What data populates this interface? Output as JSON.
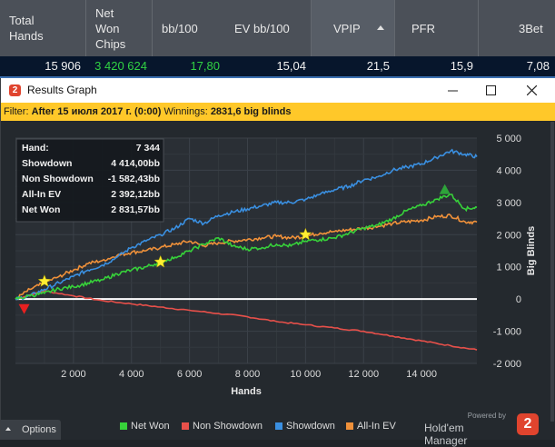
{
  "stats": {
    "headers": [
      "Total Hands",
      "Net Won Chips",
      "bb/100",
      "EV bb/100",
      "VPIP",
      "PFR",
      "3Bet"
    ],
    "values": [
      "15 906",
      "3 420 624",
      "17,80",
      "15,04",
      "21,5",
      "15,9",
      "7,08"
    ]
  },
  "window": {
    "title": "Results Graph",
    "minimize": "—",
    "maximize": "☐",
    "close": "✕"
  },
  "filter": {
    "prefix": "Filter:",
    "value": "After 15 июля 2017 г. (0:00)",
    "winnings_label": "Winnings:",
    "winnings_value": "2831,6 big blinds"
  },
  "summary": [
    {
      "label": "Hand:",
      "value": "7 344"
    },
    {
      "label": "Showdown",
      "value": "4 414,00bb"
    },
    {
      "label": "Non Showdown",
      "value": "-1 582,43bb"
    },
    {
      "label": "All-In EV",
      "value": "2 392,12bb"
    },
    {
      "label": "Net Won",
      "value": "2 831,57bb"
    }
  ],
  "options_label": "Options",
  "brand": {
    "powered_by": "Powered by",
    "name": "Hold'em Manager",
    "logo": "2"
  },
  "colors": {
    "net_won": "#37d23a",
    "non_showdown": "#e8504a",
    "showdown": "#3a8fe0",
    "all_in_ev": "#f0913a",
    "zero_line": "#ffffff",
    "filter_bg": "#ffc829"
  },
  "chart_data": {
    "type": "line",
    "xlabel": "Hands",
    "ylabel": "Big Blinds",
    "xlim": [
      0,
      15906
    ],
    "ylim": [
      -2000,
      5000
    ],
    "xticks": [
      2000,
      4000,
      6000,
      8000,
      10000,
      12000,
      14000
    ],
    "xtick_labels": [
      "2 000",
      "4 000",
      "6 000",
      "8 000",
      "10 000",
      "12 000",
      "14 000"
    ],
    "yticks": [
      5000,
      4000,
      3000,
      2000,
      1000,
      0,
      -1000,
      -2000
    ],
    "ytick_labels": [
      "5 000",
      "4 000",
      "3 000",
      "2 000",
      "1 000",
      "0",
      "-1 000",
      "-2 000"
    ],
    "grid": true,
    "legend_position": "bottom",
    "series": [
      {
        "name": "Net Won",
        "color": "#37d23a",
        "x": [
          0,
          500,
          1000,
          1500,
          2000,
          2500,
          3000,
          3500,
          4000,
          4500,
          5000,
          5500,
          6000,
          6500,
          7000,
          7500,
          8000,
          8500,
          9000,
          9500,
          10000,
          10500,
          11000,
          11500,
          12000,
          12500,
          13000,
          13500,
          14000,
          14500,
          15000,
          15500,
          15906
        ],
        "y": [
          0,
          100,
          180,
          320,
          380,
          500,
          600,
          780,
          900,
          1000,
          1150,
          1300,
          1500,
          1700,
          1900,
          1650,
          1550,
          1600,
          1700,
          1650,
          1800,
          1850,
          1900,
          2050,
          2200,
          2300,
          2500,
          2750,
          2900,
          3100,
          3250,
          2800,
          2850
        ]
      },
      {
        "name": "Non Showdown",
        "color": "#e8504a",
        "x": [
          0,
          1000,
          2000,
          3000,
          4000,
          5000,
          6000,
          7000,
          8000,
          9000,
          10000,
          11000,
          12000,
          13000,
          14000,
          15000,
          15906
        ],
        "y": [
          0,
          250,
          100,
          -50,
          -150,
          -250,
          -350,
          -450,
          -550,
          -700,
          -800,
          -900,
          -1000,
          -1150,
          -1300,
          -1450,
          -1580
        ]
      },
      {
        "name": "Showdown",
        "color": "#3a8fe0",
        "x": [
          0,
          500,
          1000,
          1500,
          2000,
          2500,
          3000,
          3500,
          4000,
          4500,
          5000,
          5500,
          6000,
          6500,
          7000,
          7500,
          8000,
          8500,
          9000,
          9500,
          10000,
          10500,
          11000,
          11500,
          12000,
          12500,
          13000,
          13500,
          14000,
          14500,
          15000,
          15500,
          15906
        ],
        "y": [
          0,
          100,
          300,
          500,
          700,
          900,
          1050,
          1300,
          1600,
          1800,
          2000,
          2200,
          2500,
          2350,
          2600,
          2700,
          2800,
          2900,
          3000,
          3000,
          3100,
          3250,
          3400,
          3500,
          3700,
          3800,
          4000,
          4100,
          4200,
          4400,
          4600,
          4500,
          4420
        ]
      },
      {
        "name": "All-In EV",
        "color": "#f0913a",
        "x": [
          0,
          500,
          1000,
          1500,
          2000,
          2500,
          3000,
          3500,
          4000,
          4500,
          5000,
          5500,
          6000,
          6500,
          7000,
          7500,
          8000,
          8500,
          9000,
          9500,
          10000,
          10500,
          11000,
          11500,
          12000,
          12500,
          13000,
          13500,
          14000,
          14500,
          15000,
          15500,
          15906
        ],
        "y": [
          0,
          300,
          500,
          700,
          900,
          1100,
          1200,
          1350,
          1450,
          1500,
          1600,
          1700,
          1800,
          1650,
          1750,
          1800,
          1850,
          1900,
          1950,
          1900,
          1950,
          2050,
          2100,
          2150,
          2200,
          2250,
          2350,
          2400,
          2450,
          2550,
          2600,
          2400,
          2390
        ]
      }
    ],
    "markers": [
      {
        "shape": "star",
        "x": 1000,
        "y": 550,
        "color": "#ffee33"
      },
      {
        "shape": "star",
        "x": 5000,
        "y": 1150,
        "color": "#ffee33"
      },
      {
        "shape": "star",
        "x": 10000,
        "y": 2000,
        "color": "#ffee33"
      },
      {
        "shape": "triangle-down",
        "x": 300,
        "y": -300,
        "color": "#e82020"
      },
      {
        "shape": "triangle-up",
        "x": 14800,
        "y": 3400,
        "color": "#2ea33a"
      }
    ]
  }
}
